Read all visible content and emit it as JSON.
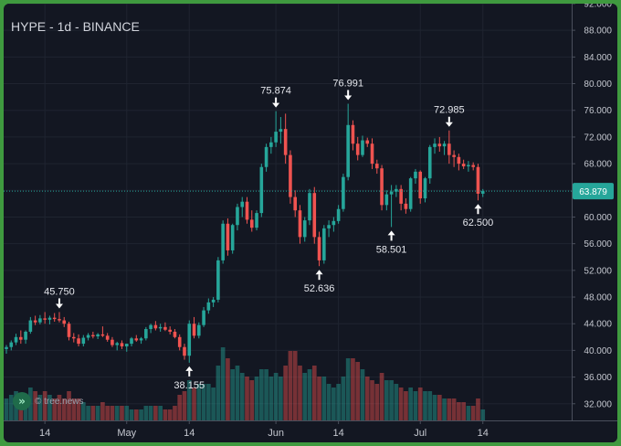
{
  "title": "HYPE - 1d - BINANCE",
  "watermark": "© tree.news",
  "chart_data": {
    "type": "candlestick",
    "y_axis": {
      "min": 29.5,
      "max": 92.0,
      "ticks": [
        "92.000",
        "88.000",
        "84.000",
        "80.000",
        "76.000",
        "72.000",
        "68.000",
        "64.000",
        "60.000",
        "56.000",
        "52.000",
        "48.000",
        "44.000",
        "40.000",
        "36.000",
        "32.000"
      ],
      "position": "right"
    },
    "x_axis": {
      "labels": [
        {
          "text": "14",
          "index": 8
        },
        {
          "text": "May",
          "index": 25
        },
        {
          "text": "14",
          "index": 38
        },
        {
          "text": "Jun",
          "index": 56
        },
        {
          "text": "14",
          "index": 69
        },
        {
          "text": "Jul",
          "index": 86
        },
        {
          "text": "14",
          "index": 99
        }
      ]
    },
    "last_price": {
      "value": 63.879,
      "label": "63.879"
    },
    "colors": {
      "up": "#26a69a",
      "down": "#ef5350",
      "price_line": "#26a69a"
    },
    "annotations": [
      {
        "label": "45.750",
        "index": 11,
        "value": 45.75,
        "position": "above"
      },
      {
        "label": "38.155",
        "index": 38,
        "value": 38.155,
        "position": "below"
      },
      {
        "label": "75.874",
        "index": 56,
        "value": 75.874,
        "position": "above"
      },
      {
        "label": "52.636",
        "index": 65,
        "value": 52.636,
        "position": "below"
      },
      {
        "label": "76.991",
        "index": 71,
        "value": 76.991,
        "position": "above"
      },
      {
        "label": "58.501",
        "index": 80,
        "value": 58.501,
        "position": "below"
      },
      {
        "label": "72.985",
        "index": 92,
        "value": 72.985,
        "position": "above"
      },
      {
        "label": "62.500",
        "index": 98,
        "value": 62.5,
        "position": "below"
      }
    ],
    "candles": [
      [
        40.2,
        40.8,
        39.5,
        40.5,
        0.3
      ],
      [
        40.5,
        41.5,
        40.0,
        41.2,
        0.35
      ],
      [
        41.2,
        42.5,
        40.8,
        42.0,
        0.4
      ],
      [
        42.0,
        43.0,
        41.0,
        41.6,
        0.35
      ],
      [
        41.6,
        43.0,
        41.0,
        42.8,
        0.3
      ],
      [
        42.8,
        45.0,
        42.5,
        44.5,
        0.45
      ],
      [
        44.5,
        45.2,
        43.8,
        44.2,
        0.4
      ],
      [
        44.2,
        45.3,
        43.9,
        44.8,
        0.35
      ],
      [
        44.8,
        45.75,
        44.0,
        44.6,
        0.4
      ],
      [
        44.6,
        45.2,
        43.9,
        44.9,
        0.35
      ],
      [
        44.9,
        45.6,
        44.3,
        44.7,
        0.3
      ],
      [
        44.7,
        45.75,
        44.2,
        44.5,
        0.35
      ],
      [
        44.5,
        45.0,
        43.5,
        44.0,
        0.3
      ],
      [
        44.0,
        44.3,
        41.5,
        42.0,
        0.4
      ],
      [
        42.0,
        42.6,
        41.2,
        41.8,
        0.3
      ],
      [
        41.8,
        42.4,
        40.6,
        41.0,
        0.3
      ],
      [
        41.0,
        42.3,
        40.6,
        41.9,
        0.25
      ],
      [
        41.9,
        42.6,
        41.5,
        42.3,
        0.2
      ],
      [
        42.3,
        42.8,
        41.8,
        42.1,
        0.2
      ],
      [
        42.1,
        42.6,
        41.7,
        42.4,
        0.2
      ],
      [
        42.4,
        43.6,
        42.0,
        42.2,
        0.25
      ],
      [
        42.2,
        42.6,
        41.3,
        41.6,
        0.2
      ],
      [
        41.6,
        42.0,
        40.5,
        40.8,
        0.2
      ],
      [
        40.8,
        41.3,
        40.0,
        41.1,
        0.2
      ],
      [
        41.1,
        41.5,
        40.2,
        40.6,
        0.2
      ],
      [
        40.6,
        41.0,
        39.8,
        41.0,
        0.2
      ],
      [
        41.0,
        42.0,
        40.6,
        41.8,
        0.15
      ],
      [
        41.8,
        42.3,
        41.3,
        41.5,
        0.15
      ],
      [
        41.5,
        42.0,
        41.0,
        41.8,
        0.15
      ],
      [
        41.8,
        43.5,
        41.5,
        43.2,
        0.2
      ],
      [
        43.2,
        44.0,
        42.6,
        43.8,
        0.2
      ],
      [
        43.8,
        44.4,
        43.0,
        43.3,
        0.2
      ],
      [
        43.3,
        44.0,
        42.8,
        43.5,
        0.2
      ],
      [
        43.5,
        44.2,
        42.9,
        43.1,
        0.15
      ],
      [
        43.1,
        43.6,
        42.4,
        42.8,
        0.15
      ],
      [
        42.8,
        43.2,
        41.8,
        42.0,
        0.2
      ],
      [
        42.0,
        42.4,
        40.0,
        40.5,
        0.35
      ],
      [
        40.5,
        41.0,
        38.6,
        39.2,
        0.4
      ],
      [
        39.2,
        44.5,
        38.155,
        44.0,
        0.55
      ],
      [
        44.0,
        45.0,
        41.8,
        42.2,
        0.45
      ],
      [
        42.2,
        44.2,
        41.8,
        43.8,
        0.5
      ],
      [
        43.8,
        46.5,
        43.5,
        46.0,
        0.5
      ],
      [
        46.0,
        47.8,
        45.5,
        47.2,
        0.5
      ],
      [
        47.2,
        48.0,
        46.5,
        47.6,
        0.45
      ],
      [
        47.6,
        54.0,
        47.2,
        53.5,
        0.75
      ],
      [
        53.5,
        59.5,
        53.0,
        59.0,
        1.0
      ],
      [
        59.0,
        59.8,
        54.2,
        55.0,
        0.85
      ],
      [
        55.0,
        59.0,
        54.5,
        58.8,
        0.7
      ],
      [
        58.8,
        62.0,
        58.0,
        61.5,
        0.75
      ],
      [
        61.5,
        63.0,
        60.0,
        62.3,
        0.65
      ],
      [
        62.3,
        63.0,
        59.0,
        59.6,
        0.6
      ],
      [
        59.6,
        61.0,
        57.8,
        58.4,
        0.55
      ],
      [
        58.4,
        61.0,
        58.0,
        60.6,
        0.6
      ],
      [
        60.6,
        68.0,
        60.0,
        67.5,
        0.7
      ],
      [
        67.5,
        71.0,
        66.8,
        70.5,
        0.7
      ],
      [
        70.5,
        72.0,
        69.5,
        71.2,
        0.6
      ],
      [
        71.2,
        75.874,
        70.5,
        72.8,
        0.65
      ],
      [
        72.8,
        75.0,
        71.0,
        73.2,
        0.6
      ],
      [
        73.2,
        75.5,
        68.0,
        69.3,
        0.75
      ],
      [
        69.3,
        70.0,
        62.0,
        63.0,
        0.95
      ],
      [
        63.0,
        64.0,
        60.0,
        61.0,
        0.95
      ],
      [
        61.0,
        61.8,
        56.0,
        57.0,
        0.75
      ],
      [
        57.0,
        60.0,
        56.3,
        59.5,
        0.65
      ],
      [
        59.5,
        64.2,
        58.8,
        63.6,
        0.7
      ],
      [
        63.6,
        64.5,
        56.0,
        57.0,
        0.75
      ],
      [
        57.0,
        57.8,
        52.636,
        53.5,
        0.6
      ],
      [
        53.5,
        58.8,
        53.0,
        58.3,
        0.6
      ],
      [
        58.3,
        59.5,
        57.0,
        58.8,
        0.5
      ],
      [
        58.8,
        60.0,
        57.8,
        59.4,
        0.45
      ],
      [
        59.4,
        61.8,
        59.0,
        61.2,
        0.5
      ],
      [
        61.2,
        66.5,
        60.8,
        66.0,
        0.6
      ],
      [
        66.0,
        76.991,
        65.5,
        73.8,
        0.85
      ],
      [
        73.8,
        74.5,
        70.0,
        71.0,
        0.85
      ],
      [
        71.0,
        72.0,
        68.5,
        69.3,
        0.8
      ],
      [
        69.3,
        72.2,
        69.0,
        71.5,
        0.7
      ],
      [
        71.5,
        71.9,
        70.5,
        71.0,
        0.6
      ],
      [
        71.0,
        71.8,
        67.2,
        68.0,
        0.55
      ],
      [
        68.0,
        68.6,
        66.5,
        67.3,
        0.5
      ],
      [
        67.3,
        67.8,
        61.0,
        61.8,
        0.65
      ],
      [
        61.8,
        64.0,
        61.0,
        63.4,
        0.55
      ],
      [
        63.4,
        64.8,
        58.501,
        63.8,
        0.55
      ],
      [
        63.8,
        64.8,
        63.0,
        64.2,
        0.5
      ],
      [
        64.2,
        64.8,
        61.0,
        62.0,
        0.45
      ],
      [
        62.0,
        62.8,
        60.5,
        61.2,
        0.4
      ],
      [
        61.2,
        66.0,
        60.8,
        65.8,
        0.45
      ],
      [
        65.8,
        67.2,
        65.0,
        66.8,
        0.4
      ],
      [
        66.8,
        67.0,
        62.0,
        62.8,
        0.45
      ],
      [
        62.8,
        66.0,
        62.2,
        65.8,
        0.4
      ],
      [
        65.8,
        70.8,
        65.0,
        70.5,
        0.4
      ],
      [
        70.5,
        71.8,
        69.5,
        71.0,
        0.35
      ],
      [
        71.0,
        72.0,
        69.8,
        70.6,
        0.35
      ],
      [
        70.6,
        71.4,
        69.3,
        71.0,
        0.3
      ],
      [
        71.0,
        72.985,
        68.0,
        69.3,
        0.3
      ],
      [
        69.3,
        70.0,
        67.5,
        69.0,
        0.3
      ],
      [
        69.0,
        69.5,
        67.0,
        68.0,
        0.25
      ],
      [
        68.0,
        68.6,
        67.2,
        67.6,
        0.25
      ],
      [
        67.6,
        68.4,
        66.8,
        67.8,
        0.2
      ],
      [
        67.8,
        68.2,
        67.0,
        67.5,
        0.2
      ],
      [
        67.5,
        68.0,
        62.5,
        63.5,
        0.3
      ],
      [
        63.5,
        64.2,
        63.0,
        63.879,
        0.15
      ]
    ],
    "grid": true,
    "legend": "none"
  }
}
